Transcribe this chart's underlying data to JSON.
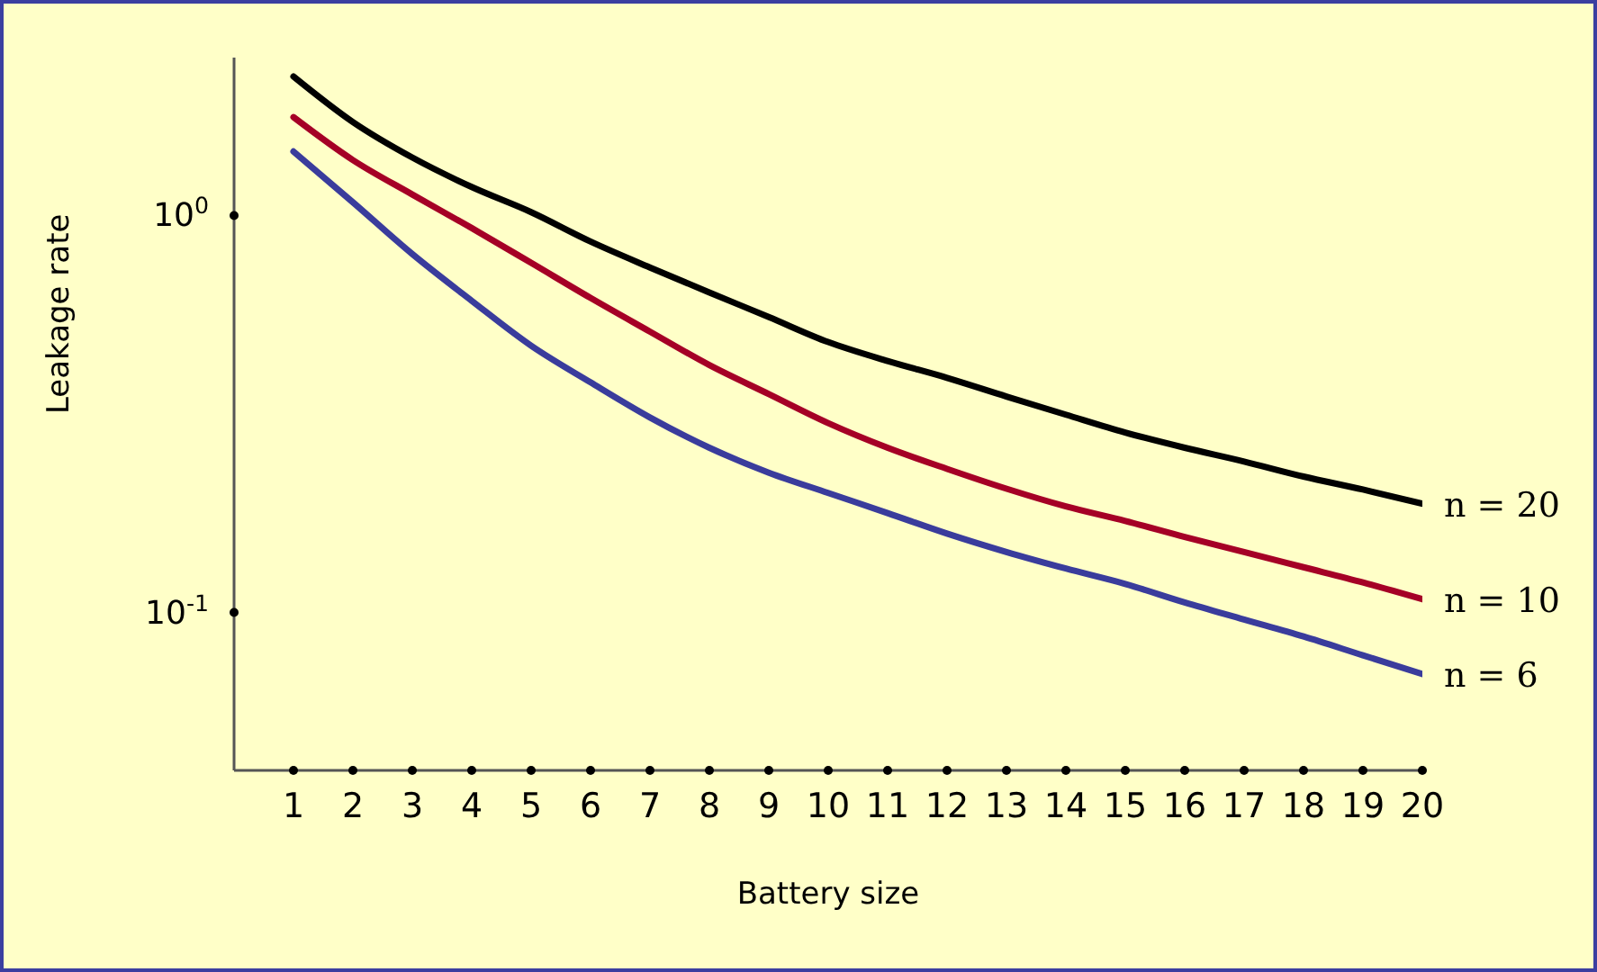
{
  "chart_data": {
    "type": "line",
    "xlabel": "Battery size",
    "ylabel": "Leakage rate",
    "x": [
      1,
      2,
      3,
      4,
      5,
      6,
      7,
      8,
      9,
      10,
      11,
      12,
      13,
      14,
      15,
      16,
      17,
      18,
      19,
      20
    ],
    "series": [
      {
        "name": "n = 20",
        "color": "#000000",
        "values": [
          2.24,
          1.72,
          1.4,
          1.18,
          1.02,
          0.86,
          0.74,
          0.64,
          0.555,
          0.48,
          0.43,
          0.39,
          0.35,
          0.315,
          0.284,
          0.26,
          0.24,
          0.22,
          0.204,
          0.188
        ]
      },
      {
        "name": "n = 10",
        "color": "#a50026",
        "values": [
          1.77,
          1.38,
          1.13,
          0.93,
          0.76,
          0.62,
          0.51,
          0.42,
          0.355,
          0.3,
          0.26,
          0.23,
          0.205,
          0.185,
          0.17,
          0.155,
          0.142,
          0.13,
          0.119,
          0.108
        ]
      },
      {
        "name": "n = 6",
        "color": "#3a3c9c",
        "values": [
          1.45,
          1.08,
          0.8,
          0.61,
          0.47,
          0.38,
          0.31,
          0.26,
          0.225,
          0.2,
          0.178,
          0.158,
          0.142,
          0.129,
          0.118,
          0.106,
          0.096,
          0.087,
          0.078,
          0.07
        ]
      }
    ],
    "log": "y",
    "xlim": [
      0,
      20
    ],
    "ylim": [
      0.04,
      2.5
    ],
    "xticks": [
      1,
      2,
      3,
      4,
      5,
      6,
      7,
      8,
      9,
      10,
      11,
      12,
      13,
      14,
      15,
      16,
      17,
      18,
      19,
      20
    ],
    "yticks": [
      {
        "value": 1,
        "label": "10$^{0}$"
      },
      {
        "value": 0.1,
        "label": "10$^{-1}$"
      }
    ],
    "grid": false,
    "legend": false,
    "marker": "none",
    "line_style": "solid"
  }
}
